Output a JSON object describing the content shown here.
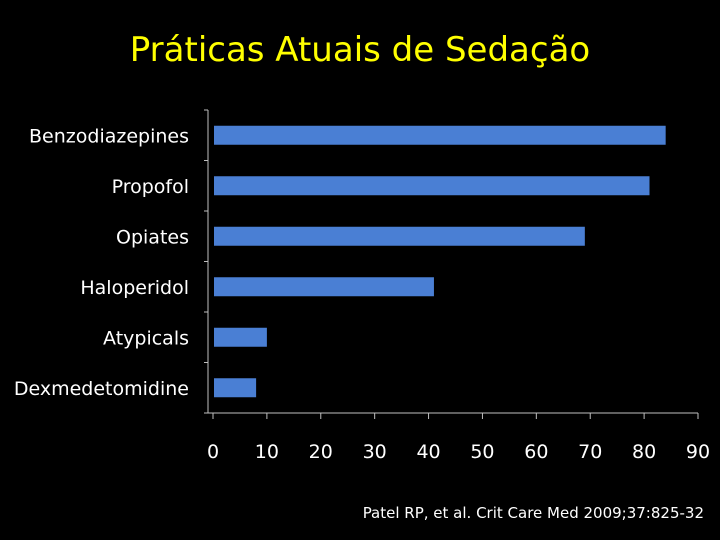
{
  "slide": {
    "title": "Práticas Atuais de Sedação",
    "citation": "Patel RP, et al. Crit Care Med 2009;37:825-32"
  },
  "colors": {
    "background": "#000000",
    "title": "#ffff00",
    "bar": "#4a7fd4",
    "text": "#ffffff",
    "axis": "#bfbfbf"
  },
  "chart_data": {
    "type": "bar",
    "orientation": "horizontal",
    "categories": [
      "Benzodiazepines",
      "Propofol",
      "Opiates",
      "Haloperidol",
      "Atypicals",
      "Dexmedetomidine"
    ],
    "values": [
      84,
      81,
      69,
      41,
      10,
      8
    ],
    "xlim": [
      0,
      90
    ],
    "xticks": [
      "0",
      "10",
      "20",
      "30",
      "40",
      "50",
      "60",
      "70",
      "80",
      "90"
    ],
    "grid": false,
    "legend": "none"
  }
}
